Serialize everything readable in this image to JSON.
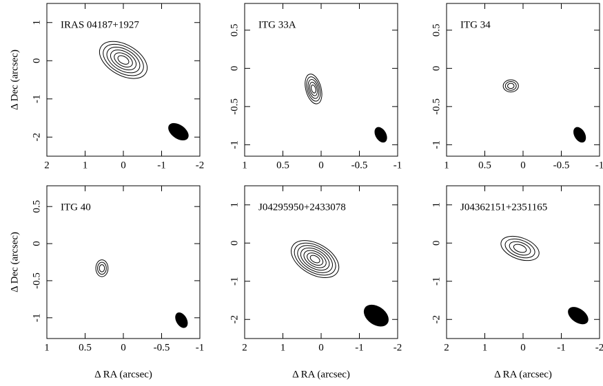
{
  "chart_data": [
    {
      "type": "contour",
      "title": "IRAS 04187+1927",
      "ylabel": "Δ Dec (arcsec)",
      "xlim": [
        2,
        -2
      ],
      "ylim": [
        -2.5,
        1.5
      ],
      "xticks": [
        2,
        1,
        0,
        -1,
        -2
      ],
      "yticks": [
        1,
        0,
        -1,
        -2
      ]
    },
    {
      "type": "contour",
      "title": "ITG 33A",
      "xlim": [
        1,
        -1
      ],
      "ylim": [
        -1.15,
        0.85
      ],
      "xticks": [
        1,
        0.5,
        0,
        -0.5,
        -1
      ],
      "yticks": [
        0.5,
        0,
        -0.5,
        -1
      ]
    },
    {
      "type": "contour",
      "title": "ITG 34",
      "xlim": [
        1,
        -1
      ],
      "ylim": [
        -1.15,
        0.85
      ],
      "xticks": [
        1,
        0.5,
        0,
        -0.5,
        -1
      ],
      "yticks": [
        0.5,
        0,
        -0.5,
        -1
      ]
    },
    {
      "type": "contour",
      "title": "ITG 40",
      "ylabel": "Δ Dec (arcsec)",
      "xlabel": "Δ RA (arcsec)",
      "xlim": [
        1,
        -1
      ],
      "ylim": [
        -1.28,
        0.78
      ],
      "xticks": [
        1,
        0.5,
        0,
        -0.5,
        -1
      ],
      "yticks": [
        0.5,
        0,
        -0.5,
        -1
      ]
    },
    {
      "type": "contour",
      "title": "J04295950+2433078",
      "xlabel": "Δ RA (arcsec)",
      "xlim": [
        2,
        -2
      ],
      "ylim": [
        -2.5,
        1.5
      ],
      "xticks": [
        2,
        1,
        0,
        -1,
        -2
      ],
      "yticks": [
        1,
        0,
        -1,
        -2
      ]
    },
    {
      "type": "contour",
      "title": "J04362151+2351165",
      "xlabel": "Δ RA (arcsec)",
      "xlim": [
        2,
        -2
      ],
      "ylim": [
        -2.5,
        1.5
      ],
      "xticks": [
        2,
        1,
        0,
        -1,
        -2
      ],
      "yticks": [
        1,
        0,
        -1,
        -2
      ]
    }
  ]
}
